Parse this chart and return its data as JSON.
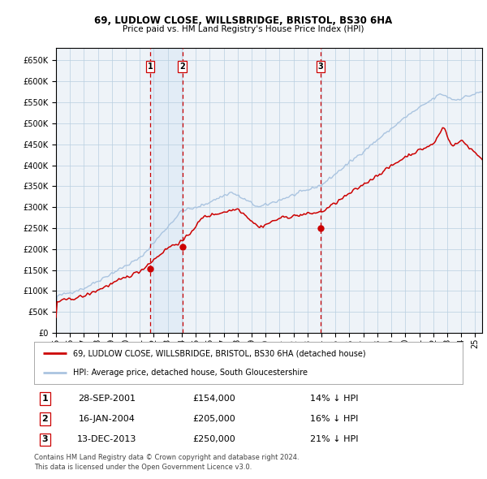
{
  "title1": "69, LUDLOW CLOSE, WILLSBRIDGE, BRISTOL, BS30 6HA",
  "title2": "Price paid vs. HM Land Registry's House Price Index (HPI)",
  "legend_line1": "69, LUDLOW CLOSE, WILLSBRIDGE, BRISTOL, BS30 6HA (detached house)",
  "legend_line2": "HPI: Average price, detached house, South Gloucestershire",
  "transactions": [
    {
      "num": 1,
      "date": "28-SEP-2001",
      "price": 154000,
      "pct": "14%",
      "dir": "↓"
    },
    {
      "num": 2,
      "date": "16-JAN-2004",
      "price": 205000,
      "pct": "16%",
      "dir": "↓"
    },
    {
      "num": 3,
      "date": "13-DEC-2013",
      "price": 250000,
      "pct": "21%",
      "dir": "↓"
    }
  ],
  "transaction_dates_num": [
    2001.75,
    2004.04,
    2013.95
  ],
  "transaction_prices": [
    154000,
    205000,
    250000
  ],
  "footer1": "Contains HM Land Registry data © Crown copyright and database right 2024.",
  "footer2": "This data is licensed under the Open Government Licence v3.0.",
  "ylim": [
    0,
    680000
  ],
  "xlim_start": 1995.0,
  "xlim_end": 2025.5,
  "hpi_color": "#aac4e0",
  "price_color": "#cc0000",
  "vline_color": "#cc0000",
  "shade_color": "#cce0f5",
  "grid_color": "#b8cfe0",
  "bg_color": "#ffffff",
  "plot_bg_color": "#eef3f8"
}
